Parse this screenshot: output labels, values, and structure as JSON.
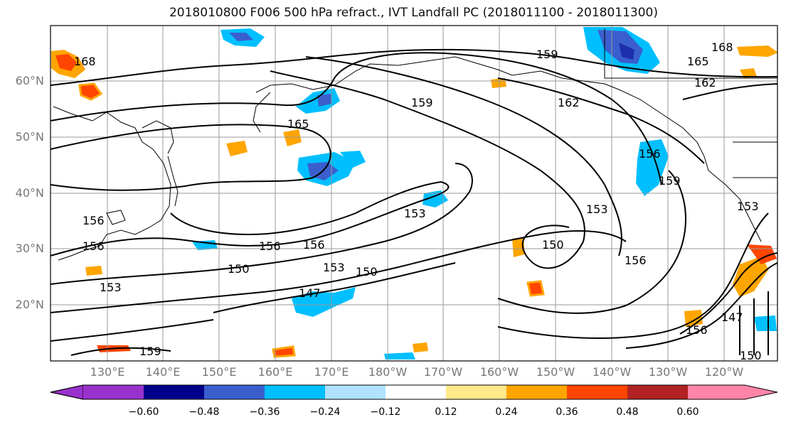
{
  "title": "2018010800 F006 500 hPa refract., IVT Landfall PC (2018011100 - 2018011300)",
  "lat_labels": [
    "60°N",
    "50°N",
    "40°N",
    "30°N",
    "20°N"
  ],
  "lon_labels": [
    "130°E",
    "140°E",
    "150°E",
    "160°E",
    "170°E",
    "180°W",
    "170°W",
    "160°W",
    "150°W",
    "140°W",
    "130°W",
    "120°W"
  ],
  "contour_labels": [
    "168",
    "165",
    "159",
    "162",
    "165",
    "162",
    "168",
    "159",
    "156",
    "159",
    "153",
    "156",
    "156",
    "150",
    "153",
    "150",
    "147",
    "150",
    "153",
    "156",
    "156",
    "153",
    "156",
    "147",
    "153",
    "156",
    "159",
    "150"
  ],
  "colorbar": {
    "ticks": [
      "−0.60",
      "−0.48",
      "−0.36",
      "−0.24",
      "−0.12",
      "0.12",
      "0.24",
      "0.36",
      "0.48",
      "0.60"
    ],
    "colors": [
      "#9932cc",
      "#00008b",
      "#3a5fcd",
      "#00bfff",
      "#b0e2ff",
      "#ffffff",
      "#ffe98a",
      "#ffa500",
      "#ff4500",
      "#b22222",
      "#ff85a8"
    ]
  }
}
